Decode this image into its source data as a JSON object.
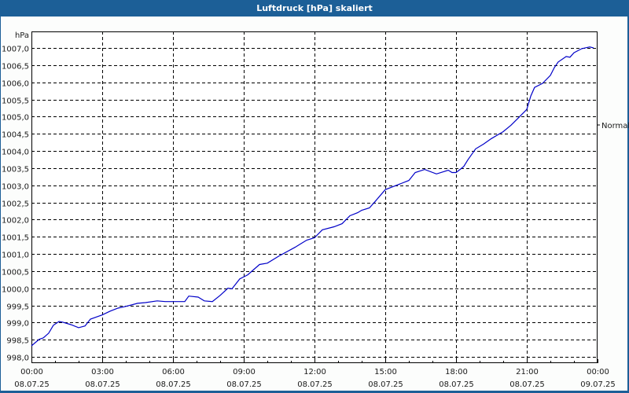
{
  "window": {
    "title": "Luftdruck [hPa] skaliert"
  },
  "colors": {
    "frame": "#1c5f97",
    "background": "#fcfdfc",
    "line": "#0000c8",
    "grid": "#000000"
  },
  "legend": {
    "series_label": "Normal"
  },
  "chart_data": {
    "type": "line",
    "title": "Luftdruck [hPa] skaliert",
    "xlabel": "",
    "ylabel": "hPa",
    "ylim": [
      998.0,
      1007.0
    ],
    "y_ticks": [
      "998,0",
      "998,5",
      "999,0",
      "999,5",
      "1000,0",
      "1000,5",
      "1001,0",
      "1001,5",
      "1002,0",
      "1002,5",
      "1003,0",
      "1003,5",
      "1004,0",
      "1004,5",
      "1005,0",
      "1005,5",
      "1006,0",
      "1006,5",
      "1007,0"
    ],
    "x_ticks": [
      {
        "time": "00:00",
        "date": "08.07.25"
      },
      {
        "time": "03:00",
        "date": "08.07.25"
      },
      {
        "time": "06:00",
        "date": "08.07.25"
      },
      {
        "time": "09:00",
        "date": "08.07.25"
      },
      {
        "time": "12:00",
        "date": "08.07.25"
      },
      {
        "time": "15:00",
        "date": "08.07.25"
      },
      {
        "time": "18:00",
        "date": "08.07.25"
      },
      {
        "time": "21:00",
        "date": "08.07.25"
      },
      {
        "time": "00:00",
        "date": "09.07.25"
      }
    ],
    "grid": true,
    "legend_position": "right",
    "series": [
      {
        "name": "Normal",
        "x_hours": [
          0,
          0.33,
          0.5,
          0.73,
          0.93,
          1.17,
          1.33,
          1.67,
          2.0,
          2.27,
          2.5,
          3.0,
          3.33,
          3.67,
          4.0,
          4.5,
          4.83,
          5.33,
          5.67,
          6.0,
          6.5,
          6.67,
          7.07,
          7.33,
          7.67,
          8.0,
          8.33,
          8.5,
          8.83,
          9.17,
          9.67,
          10.0,
          10.5,
          11.17,
          11.67,
          12.0,
          12.33,
          12.83,
          13.17,
          13.5,
          13.83,
          14.0,
          14.33,
          14.6,
          15.0,
          15.33,
          15.67,
          16.0,
          16.27,
          16.67,
          17.17,
          17.5,
          17.67,
          17.83,
          18.0,
          18.17,
          18.33,
          18.5,
          18.83,
          19.17,
          19.5,
          20.0,
          20.33,
          20.67,
          21.0,
          21.17,
          21.33,
          21.67,
          22.0,
          22.17,
          22.33,
          22.67,
          22.83,
          23.0,
          23.33,
          23.67,
          23.83
        ],
        "values": [
          998.32,
          998.51,
          998.55,
          998.69,
          998.92,
          999.03,
          999.01,
          998.94,
          998.85,
          998.9,
          999.1,
          999.22,
          999.33,
          999.42,
          999.47,
          999.56,
          999.58,
          999.63,
          999.61,
          999.61,
          999.61,
          999.77,
          999.74,
          999.63,
          999.61,
          999.79,
          1000.0,
          999.98,
          1000.27,
          1000.39,
          1000.69,
          1000.73,
          1000.94,
          1001.19,
          1001.4,
          1001.47,
          1001.7,
          1001.79,
          1001.88,
          1002.11,
          1002.2,
          1002.27,
          1002.34,
          1002.55,
          1002.87,
          1002.96,
          1003.05,
          1003.14,
          1003.37,
          1003.46,
          1003.33,
          1003.4,
          1003.44,
          1003.37,
          1003.37,
          1003.46,
          1003.55,
          1003.74,
          1004.06,
          1004.2,
          1004.36,
          1004.56,
          1004.75,
          1004.98,
          1005.21,
          1005.6,
          1005.85,
          1005.97,
          1006.2,
          1006.43,
          1006.59,
          1006.75,
          1006.73,
          1006.86,
          1006.98,
          1007.03,
          1007.0
        ]
      }
    ]
  }
}
